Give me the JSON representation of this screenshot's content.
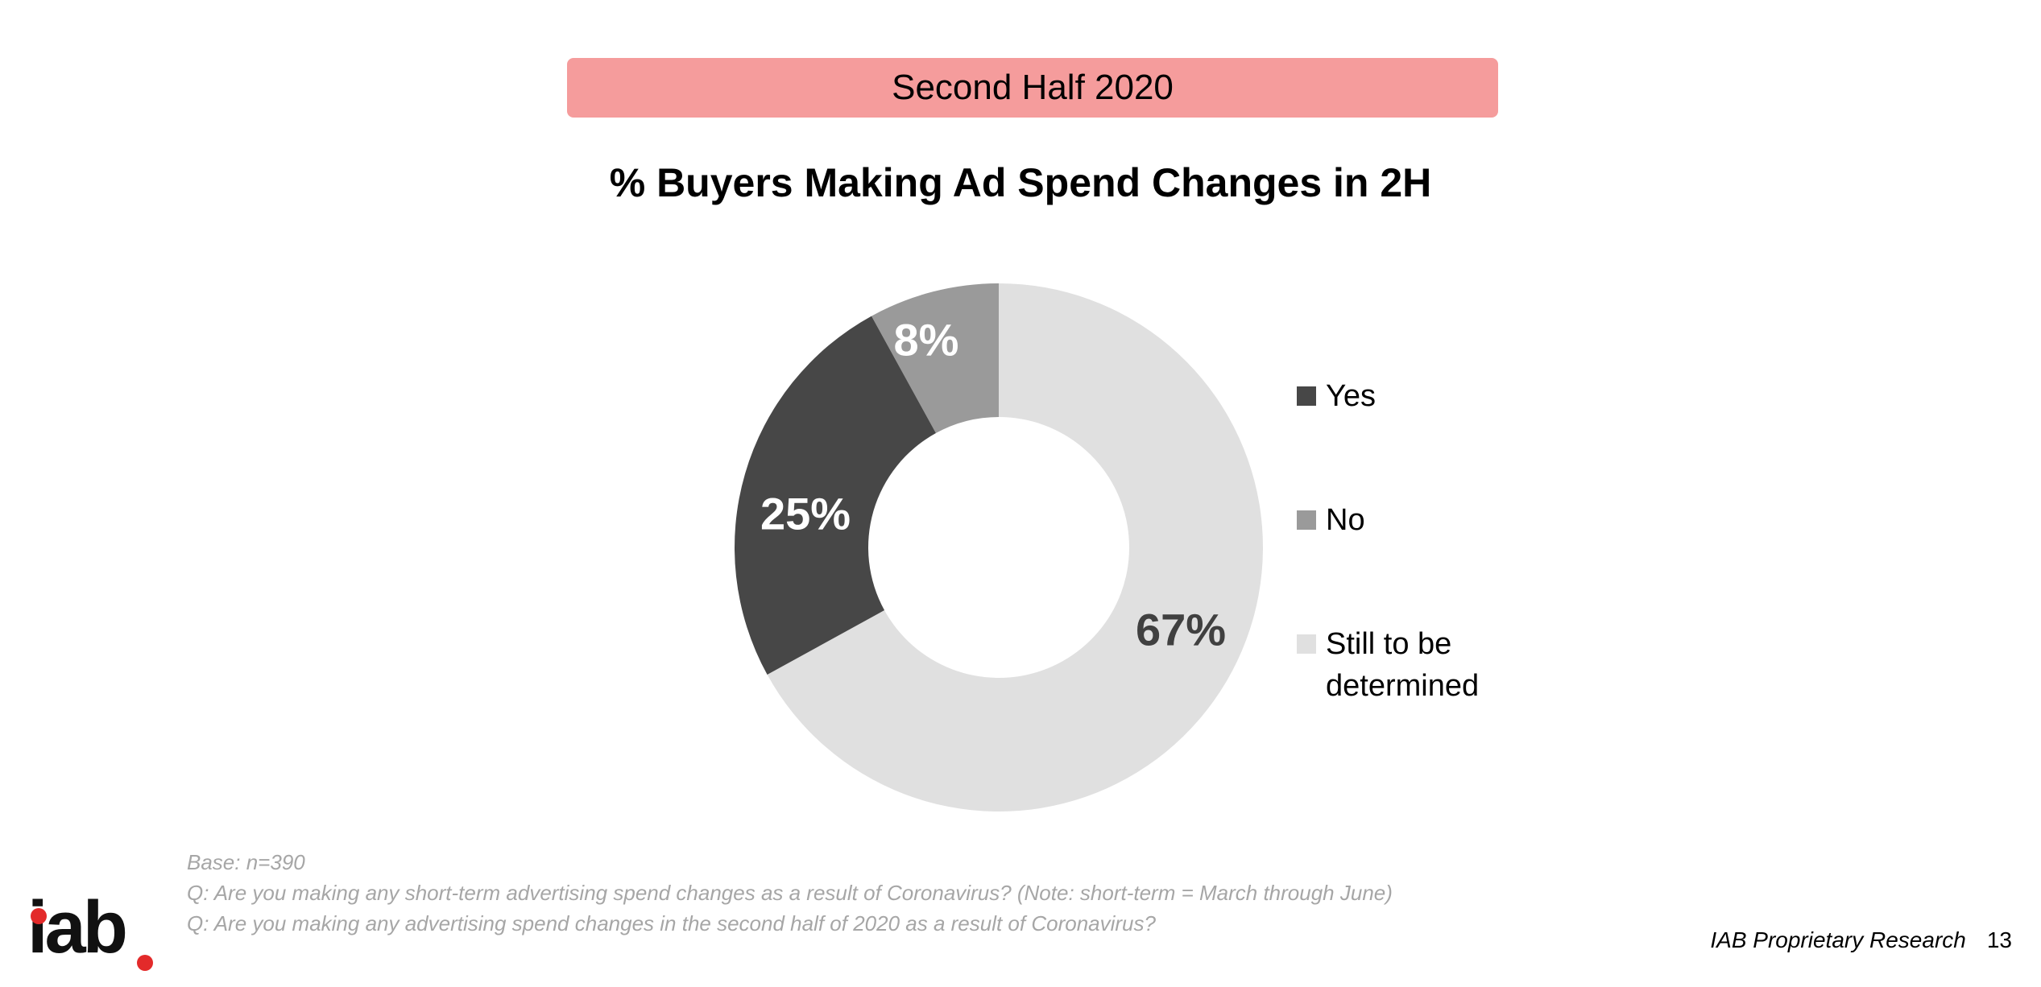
{
  "banner": {
    "label": "Second Half 2020"
  },
  "chart_data": {
    "type": "pie",
    "variant": "donut",
    "title": "% Buyers Making Ad Spend Changes in 2H",
    "categories": [
      "Yes",
      "No",
      "Still to be determined"
    ],
    "values": [
      25,
      8,
      67
    ],
    "data_labels": [
      "25%",
      "8%",
      "67%"
    ],
    "colors": [
      "#474747",
      "#9a9a9a",
      "#e0e0e0"
    ],
    "label_colors": [
      "#ffffff",
      "#ffffff",
      "#404040"
    ],
    "legend_position": "right"
  },
  "footnotes": {
    "base": "Base: n=390",
    "q1": "Q: Are you making any short-term advertising spend changes as a result of Coronavirus? (Note: short-term = March through June)",
    "q2": "Q: Are you making any advertising spend changes in the second half of 2020 as a result of Coronavirus?"
  },
  "logo": {
    "text": "iab"
  },
  "footer": {
    "source": "IAB Proprietary Research",
    "page": "13"
  }
}
